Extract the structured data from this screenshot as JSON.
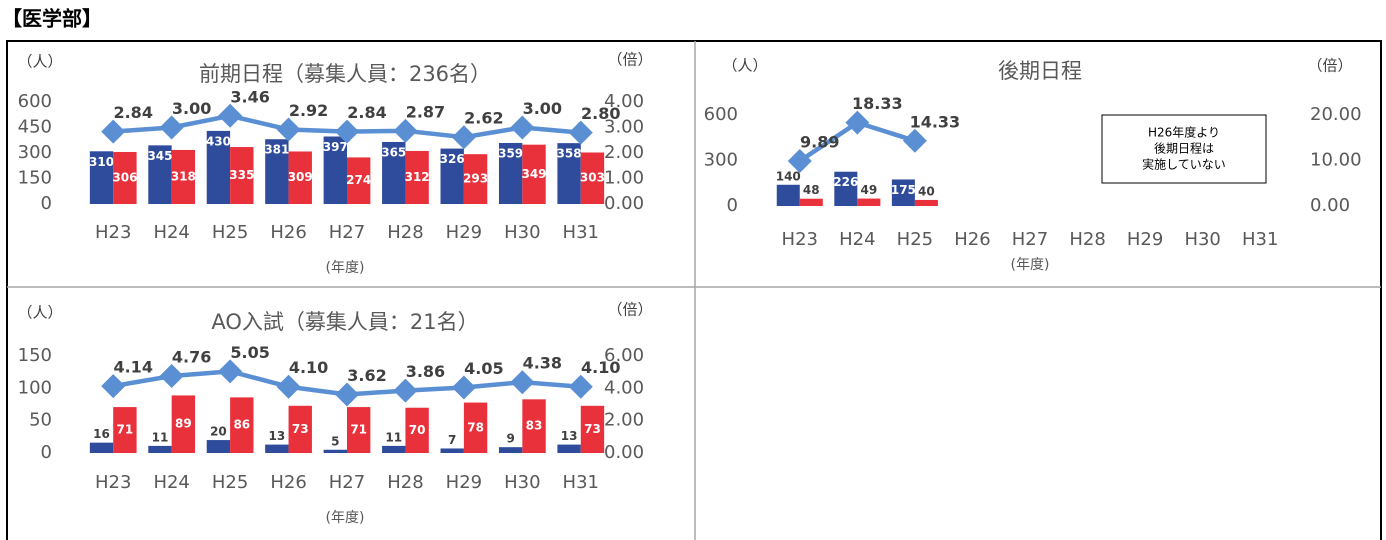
{
  "header": {
    "title": "【医学部】"
  },
  "chart_data": [
    {
      "type": "bar",
      "title": "前期日程（募集人員：236名）",
      "y_label": "（人）",
      "y2_label": "（倍）",
      "x_label": "(年度)",
      "categories": [
        "H23",
        "H24",
        "H25",
        "H26",
        "H27",
        "H28",
        "H29",
        "H30",
        "H31"
      ],
      "ylim": [
        0,
        600
      ],
      "yticks": [
        0,
        150,
        300,
        450,
        600
      ],
      "y2lim": [
        0,
        4
      ],
      "y2ticks": [
        {
          "value": 0,
          "label": "0.00"
        },
        {
          "value": 1,
          "label": "1.00"
        },
        {
          "value": 2,
          "label": "2.00"
        },
        {
          "value": 3,
          "label": "3.00"
        },
        {
          "value": 4,
          "label": "4.00"
        }
      ],
      "series": [
        {
          "color": "#2f4c9c",
          "values": [
            310,
            345,
            430,
            381,
            397,
            365,
            326,
            359,
            358
          ]
        },
        {
          "color": "#e8313b",
          "values": [
            306,
            318,
            335,
            309,
            274,
            312,
            293,
            349,
            303
          ]
        },
        {
          "type": "line",
          "axis": "y2",
          "color": "#5b8fd4",
          "values": [
            2.84,
            3,
            3.46,
            2.92,
            2.84,
            2.87,
            2.62,
            3,
            2.8
          ],
          "value_labels": [
            "2.84",
            "3.00",
            "3.46",
            "2.92",
            "2.84",
            "2.87",
            "2.62",
            "3.00",
            "2.80"
          ]
        }
      ]
    },
    {
      "type": "bar",
      "title": "後期日程",
      "y_label": "（人）",
      "y2_label": "（倍）",
      "x_label": "(年度)",
      "annotation": [
        "H26年度より",
        "後期日程は",
        "実施していない"
      ],
      "categories": [
        "H23",
        "H24",
        "H25",
        "H26",
        "H27",
        "H28",
        "H29",
        "H30",
        "H31"
      ],
      "ylim": [
        0,
        600
      ],
      "yticks": [
        0,
        300,
        600
      ],
      "y2lim": [
        0,
        20
      ],
      "y2ticks": [
        {
          "value": 0,
          "label": "0.00"
        },
        {
          "value": 10,
          "label": "10.00"
        },
        {
          "value": 20,
          "label": "20.00"
        }
      ],
      "series": [
        {
          "color": "#2f4c9c",
          "values": [
            140,
            226,
            175,
            null,
            null,
            null,
            null,
            null,
            null
          ]
        },
        {
          "color": "#e8313b",
          "values": [
            48,
            49,
            40,
            null,
            null,
            null,
            null,
            null,
            null
          ]
        },
        {
          "type": "line",
          "axis": "y2",
          "color": "#5b8fd4",
          "values": [
            9.89,
            18.33,
            14.33,
            null,
            null,
            null,
            null,
            null,
            null
          ],
          "value_labels": [
            "9.89",
            "18.33",
            "14.33",
            null,
            null,
            null,
            null,
            null,
            null
          ]
        }
      ]
    },
    {
      "type": "bar",
      "title": "AO入試（募集人員：21名）",
      "y_label": "（人）",
      "y2_label": "（倍）",
      "x_label": "(年度)",
      "categories": [
        "H23",
        "H24",
        "H25",
        "H26",
        "H27",
        "H28",
        "H29",
        "H30",
        "H31"
      ],
      "ylim": [
        0,
        150
      ],
      "yticks": [
        0,
        50,
        100,
        150
      ],
      "y2lim": [
        0,
        6
      ],
      "y2ticks": [
        {
          "value": 0,
          "label": "0.00"
        },
        {
          "value": 2,
          "label": "2.00"
        },
        {
          "value": 4,
          "label": "4.00"
        },
        {
          "value": 6,
          "label": "6.00"
        }
      ],
      "series": [
        {
          "color": "#2f4c9c",
          "values": [
            16,
            11,
            20,
            13,
            5,
            11,
            7,
            9,
            13
          ]
        },
        {
          "color": "#e8313b",
          "values": [
            71,
            89,
            86,
            73,
            71,
            70,
            78,
            83,
            73
          ]
        },
        {
          "type": "line",
          "axis": "y2",
          "color": "#5b8fd4",
          "values": [
            4.14,
            4.76,
            5.05,
            4.1,
            3.62,
            3.86,
            4.05,
            4.38,
            4.1
          ],
          "value_labels": [
            "4.14",
            "4.76",
            "5.05",
            "4.10",
            "3.62",
            "3.86",
            "4.05",
            "4.38",
            "4.10"
          ]
        }
      ]
    }
  ]
}
